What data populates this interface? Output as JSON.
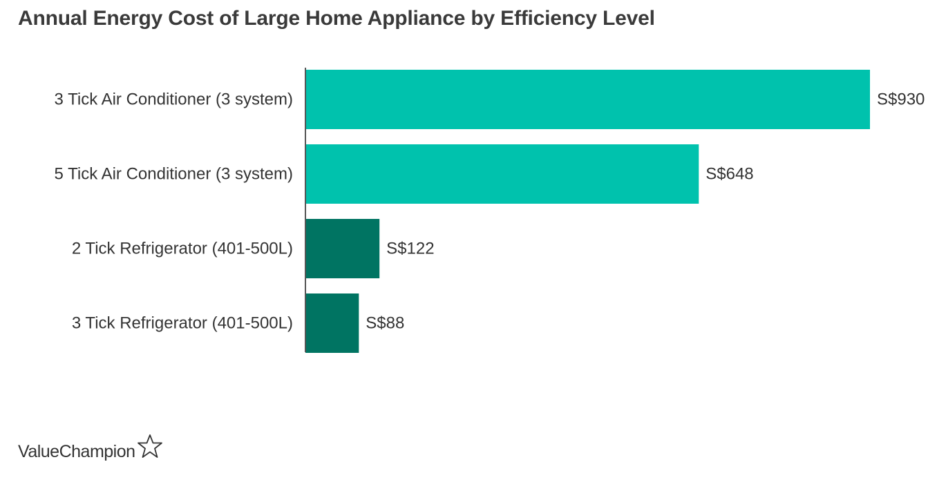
{
  "chart_data": {
    "type": "bar",
    "orientation": "horizontal",
    "title": "Annual Energy Cost of Large Home Appliance by Efficiency Level",
    "categories": [
      "3 Tick Air Conditioner (3 system)",
      "5 Tick Air Conditioner (3 system)",
      "2 Tick Refrigerator (401-500L)",
      "3 Tick Refrigerator (401-500L)"
    ],
    "values": [
      930,
      648,
      122,
      88
    ],
    "value_labels": [
      "S$930",
      "S$648",
      "S$122",
      "S$88"
    ],
    "bar_colors": [
      "#00c2ad",
      "#00c2ad",
      "#007462",
      "#007462"
    ],
    "xlim": [
      0,
      930
    ],
    "xlabel": "",
    "ylabel": "",
    "grid": false
  },
  "branding": {
    "text": "ValueChampion",
    "icon": "star-outline-icon"
  }
}
